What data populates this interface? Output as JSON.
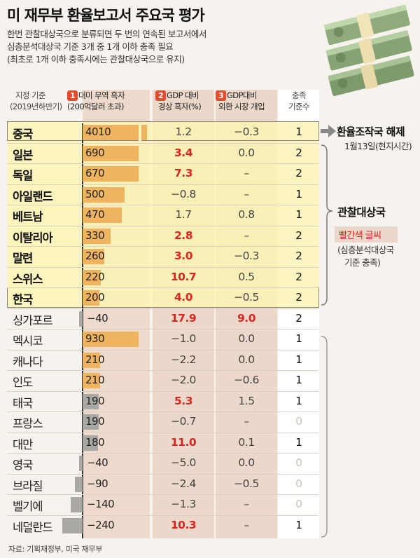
{
  "title": "미 재무부 환율보고서 주요국 평가",
  "subtitle": [
    "한번 관찰대상국으로 분류되면 두 번의 연속된 보고서에서",
    "심층분석대상국 기준 3개 중 1개 이하 충족 필요",
    "(최초로 1개 이하 충족시에는 관찰대상국으로 유지)"
  ],
  "headers": {
    "col0": [
      "지정 기준",
      "(2019년하반기)"
    ],
    "col1": [
      "대미 무역 흑자",
      "(200억달러 초과)"
    ],
    "col2": [
      "GDP 대비",
      "경상 흑자(%)"
    ],
    "col3": [
      "GDP대비",
      "외환 시장 개입"
    ],
    "col4": [
      "충족",
      "기준수"
    ],
    "num1": "1",
    "num2": "2",
    "num3": "3"
  },
  "colors": {
    "highlight_band": "#fbf3b4",
    "highlight_border": "#8b8675",
    "bar_strong": "#f0b460",
    "bar_gray": "#a9a8a5",
    "red_text": "#d7261e",
    "col_bg": "#ecd8cc"
  },
  "side": {
    "china_label": "환율조작국 해제",
    "china_note": "1월13일(현지시간)",
    "watch_label": "관찰대상국",
    "red_note": "빨간색 글씨",
    "red_note_desc": [
      "(심층분석대상국",
      "기준 충족)"
    ]
  },
  "source": "자료: 기획재정부, 미국 재무부",
  "chart_data": {
    "type": "table",
    "columns": [
      "지정 기준",
      "대미 무역 흑자",
      "GDP 대비 경상 흑자(%)",
      "GDP대비 외환 시장 개입",
      "충족 기준수"
    ],
    "rows": [
      {
        "country": "중국",
        "trade": 4010,
        "trade_label": "4010",
        "current": "1.2",
        "current_hi": false,
        "fx": "−0.3",
        "fx_hi": false,
        "count": "1",
        "group": "watch"
      },
      {
        "country": "일본",
        "trade": 690,
        "trade_label": "690",
        "current": "3.4",
        "current_hi": true,
        "fx": "0.0",
        "fx_hi": false,
        "count": "2",
        "group": "watch"
      },
      {
        "country": "독일",
        "trade": 670,
        "trade_label": "670",
        "current": "7.3",
        "current_hi": true,
        "fx": "–",
        "fx_hi": false,
        "count": "2",
        "group": "watch"
      },
      {
        "country": "아일랜드",
        "trade": 500,
        "trade_label": "500",
        "current": "−0.8",
        "current_hi": false,
        "fx": "–",
        "fx_hi": false,
        "count": "1",
        "group": "watch"
      },
      {
        "country": "베트남",
        "trade": 470,
        "trade_label": "470",
        "current": "1.7",
        "current_hi": false,
        "fx": "0.8",
        "fx_hi": false,
        "count": "1",
        "group": "watch"
      },
      {
        "country": "이탈리아",
        "trade": 330,
        "trade_label": "330",
        "current": "2.8",
        "current_hi": true,
        "fx": "–",
        "fx_hi": false,
        "count": "2",
        "group": "watch"
      },
      {
        "country": "말련",
        "trade": 260,
        "trade_label": "260",
        "current": "3.0",
        "current_hi": true,
        "fx": "−0.3",
        "fx_hi": false,
        "count": "2",
        "group": "watch"
      },
      {
        "country": "스위스",
        "trade": 220,
        "trade_label": "220",
        "current": "10.7",
        "current_hi": true,
        "fx": "0.5",
        "fx_hi": false,
        "count": "2",
        "group": "watch"
      },
      {
        "country": "한국",
        "trade": 200,
        "trade_label": "200",
        "current": "4.0",
        "current_hi": true,
        "fx": "−0.5",
        "fx_hi": false,
        "count": "2",
        "group": "watch"
      },
      {
        "country": "싱가포르",
        "trade": -40,
        "trade_label": "−40",
        "current": "17.9",
        "current_hi": true,
        "fx": "9.0",
        "fx_hi": true,
        "count": "2",
        "group": "other"
      },
      {
        "country": "멕시코",
        "trade": 930,
        "trade_label": "930",
        "current": "−1.0",
        "current_hi": false,
        "fx": "0.0",
        "fx_hi": false,
        "count": "1",
        "group": "other"
      },
      {
        "country": "캐나다",
        "trade": 210,
        "trade_label": "210",
        "current": "−2.2",
        "current_hi": false,
        "fx": "0.0",
        "fx_hi": false,
        "count": "1",
        "group": "other"
      },
      {
        "country": "인도",
        "trade": 210,
        "trade_label": "210",
        "current": "−2.0",
        "current_hi": false,
        "fx": "−0.6",
        "fx_hi": false,
        "count": "1",
        "group": "other"
      },
      {
        "country": "태국",
        "trade": 190,
        "trade_label": "190",
        "current": "5.3",
        "current_hi": true,
        "fx": "1.5",
        "fx_hi": false,
        "count": "1",
        "group": "other"
      },
      {
        "country": "프랑스",
        "trade": 190,
        "trade_label": "190",
        "current": "−0.7",
        "current_hi": false,
        "fx": "–",
        "fx_hi": false,
        "count": "0",
        "group": "other"
      },
      {
        "country": "대만",
        "trade": 180,
        "trade_label": "180",
        "current": "11.0",
        "current_hi": true,
        "fx": "0.1",
        "fx_hi": false,
        "count": "1",
        "group": "other"
      },
      {
        "country": "영국",
        "trade": -40,
        "trade_label": "−40",
        "current": "−5.0",
        "current_hi": false,
        "fx": "0.0",
        "fx_hi": false,
        "count": "0",
        "group": "other"
      },
      {
        "country": "브라질",
        "trade": -90,
        "trade_label": "−90",
        "current": "−2.4",
        "current_hi": false,
        "fx": "−0.5",
        "fx_hi": false,
        "count": "0",
        "group": "other"
      },
      {
        "country": "벨기에",
        "trade": -140,
        "trade_label": "−140",
        "current": "−1.3",
        "current_hi": false,
        "fx": "–",
        "fx_hi": false,
        "count": "0",
        "group": "other"
      },
      {
        "country": "네덜란드",
        "trade": -240,
        "trade_label": "−240",
        "current": "10.3",
        "current_hi": true,
        "fx": "–",
        "fx_hi": false,
        "count": "1",
        "group": "other"
      }
    ]
  }
}
